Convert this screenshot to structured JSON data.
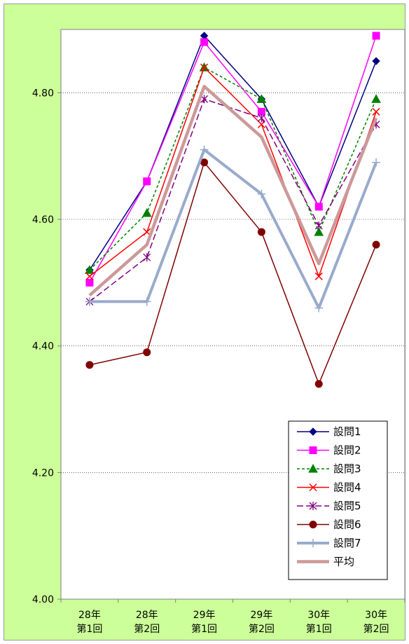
{
  "chart_data": {
    "type": "line",
    "title": "",
    "xlabel": "",
    "ylabel": "",
    "categories": [
      [
        "28年",
        "第1回"
      ],
      [
        "28年",
        "第2回"
      ],
      [
        "29年",
        "第1回"
      ],
      [
        "29年",
        "第2回"
      ],
      [
        "30年",
        "第1回"
      ],
      [
        "30年",
        "第2回"
      ]
    ],
    "ylim": [
      4.0,
      4.9
    ],
    "yticks": [
      "4.00",
      "4.20",
      "4.40",
      "4.60",
      "4.80"
    ],
    "grid": "horizontal dotted",
    "legend_position": "bottom-right",
    "series": [
      {
        "name": "設問1",
        "color": "#000080",
        "marker": "diamond",
        "dash": "solid",
        "width": 1.5,
        "values": [
          4.52,
          4.66,
          4.89,
          4.79,
          4.62,
          4.85
        ]
      },
      {
        "name": "設問2",
        "color": "#ff00ff",
        "marker": "square",
        "dash": "solid",
        "width": 1.5,
        "values": [
          4.5,
          4.66,
          4.88,
          4.77,
          4.62,
          4.89
        ]
      },
      {
        "name": "設問3",
        "color": "#008000",
        "marker": "triangle",
        "dash": "dashed",
        "width": 1.5,
        "values": [
          4.52,
          4.61,
          4.84,
          4.79,
          4.58,
          4.79
        ]
      },
      {
        "name": "設問4",
        "color": "#ff0000",
        "marker": "x",
        "dash": "solid",
        "width": 1.5,
        "values": [
          4.51,
          4.58,
          4.84,
          4.75,
          4.51,
          4.77
        ]
      },
      {
        "name": "設問5",
        "color": "#800080",
        "marker": "star",
        "dash": "longdash",
        "width": 1.5,
        "values": [
          4.47,
          4.54,
          4.79,
          4.76,
          4.59,
          4.75
        ]
      },
      {
        "name": "設問6",
        "color": "#800000",
        "marker": "circle",
        "dash": "solid",
        "width": 1.5,
        "values": [
          4.37,
          4.39,
          4.69,
          4.58,
          4.34,
          4.56
        ]
      },
      {
        "name": "設問7",
        "color": "#99aacc",
        "marker": "plus",
        "dash": "solid",
        "width": 4,
        "values": [
          4.47,
          4.47,
          4.71,
          4.64,
          4.46,
          4.69
        ]
      },
      {
        "name": "平均",
        "color": "#cc9999",
        "marker": "none",
        "dash": "solid",
        "width": 4.5,
        "values": [
          4.48,
          4.56,
          4.81,
          4.73,
          4.53,
          4.76
        ]
      }
    ]
  }
}
